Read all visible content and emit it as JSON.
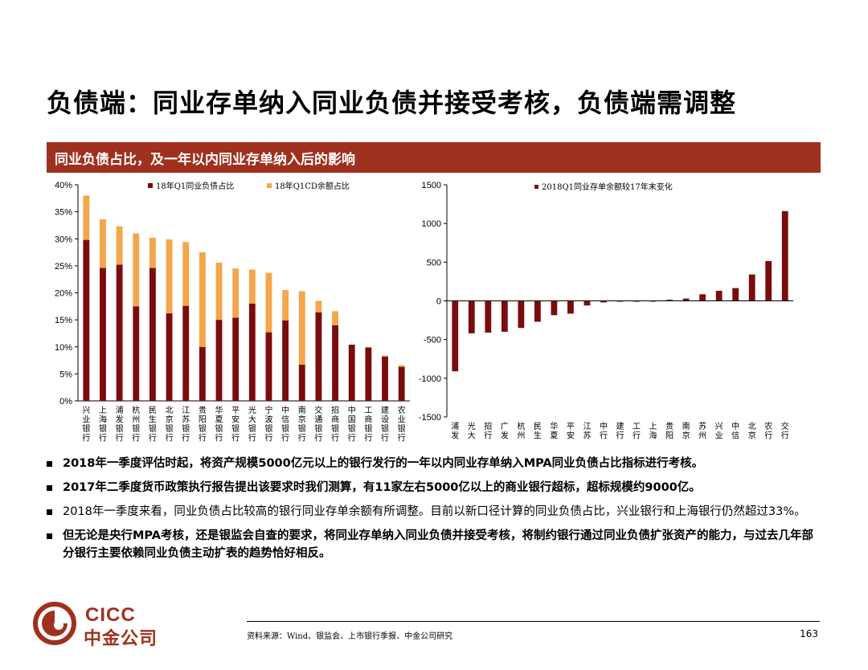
{
  "page": {
    "title": "负债端：同业存单纳入同业负债并接受考核，负债端需调整",
    "banner": "同业负债占比，及一年以内同业存单纳入后的影响",
    "bullets": [
      {
        "text": "2018年一季度评估时起，将资产规模5000亿元以上的银行发行的一年以内同业存单纳入MPA同业负债占比指标进行考核。",
        "bold": true
      },
      {
        "text": "2017年二季度货币政策执行报告提出该要求时我们测算，有11家左右5000亿以上的商业银行超标，超标规模约9000亿。",
        "bold": true
      },
      {
        "text": "2018年一季度来看，同业负债占比较高的银行同业存单余额有所调整。目前以新口径计算的同业负债占比，兴业银行和上海银行仍然超过33%。",
        "bold": false
      },
      {
        "text": "但无论是央行MPA考核，还是银监会自查的要求，将同业存单纳入同业负债并接受考核，将制约银行通过同业负债扩张资产的能力，与过去几年部分银行主要依赖同业负债主动扩表的趋势恰好相反。",
        "bold": true
      }
    ],
    "source": "资料来源：Wind、银监会、上市银行季报、中金公司研究",
    "page_number": "163",
    "logo": {
      "en": "CICC",
      "cn": "中金公司"
    },
    "colors": {
      "dark_red": "#7b0c0c",
      "orange": "#f5a54a",
      "banner": "#a0301e",
      "brand": "#a0301e"
    }
  },
  "chart_data": [
    {
      "type": "bar",
      "stacked": true,
      "categories": [
        "兴业银行",
        "上海银行",
        "浦发银行",
        "杭州银行",
        "民生银行",
        "北京银行",
        "江苏银行",
        "贵阳银行",
        "华夏银行",
        "平安银行",
        "光大银行",
        "宁波银行",
        "中信银行",
        "南京银行",
        "交通银行",
        "招商银行",
        "中国银行",
        "工商银行",
        "建设银行",
        "农业银行"
      ],
      "y_ticks": [
        "0%",
        "5%",
        "10%",
        "15%",
        "20%",
        "25%",
        "30%",
        "35%",
        "40%"
      ],
      "ylim": [
        0,
        40
      ],
      "legend_position": "top",
      "series": [
        {
          "name": "18年Q1同业负债占比",
          "color": "#7b0c0c",
          "values": [
            29.8,
            24.6,
            25.2,
            17.5,
            24.6,
            16.2,
            17.6,
            10.0,
            15.0,
            15.4,
            18.0,
            12.7,
            14.9,
            6.7,
            16.4,
            14.0,
            10.4,
            9.9,
            8.2,
            6.3
          ]
        },
        {
          "name": "18年Q1CD余额占比",
          "color": "#f5a54a",
          "values": [
            8.2,
            9.0,
            7.1,
            13.5,
            5.6,
            13.7,
            11.8,
            17.5,
            10.6,
            9.1,
            6.3,
            11.0,
            5.6,
            13.6,
            2.1,
            2.6,
            0.0,
            0.0,
            0.2,
            0.3
          ]
        }
      ]
    },
    {
      "type": "bar",
      "categories": [
        "浦发",
        "光大",
        "招行",
        "广发",
        "杭州",
        "民生",
        "华夏",
        "平安",
        "江苏",
        "中行",
        "建行",
        "工行",
        "上海",
        "贵阳",
        "南京",
        "苏州",
        "兴业",
        "中信",
        "北京",
        "农行",
        "交行"
      ],
      "y_ticks": [
        "-1500",
        "-1000",
        "-500",
        "0",
        "500",
        "1000",
        "1500"
      ],
      "ylim": [
        -1500,
        1500
      ],
      "legend_position": "top",
      "series": [
        {
          "name": "2018Q1同业存单余额较17年末变化",
          "color": "#7b0c0c",
          "values": [
            -910,
            -420,
            -410,
            -400,
            -350,
            -270,
            -185,
            -165,
            -60,
            -20,
            -10,
            -5,
            -5,
            15,
            30,
            85,
            130,
            165,
            340,
            515,
            1160
          ]
        }
      ]
    }
  ]
}
